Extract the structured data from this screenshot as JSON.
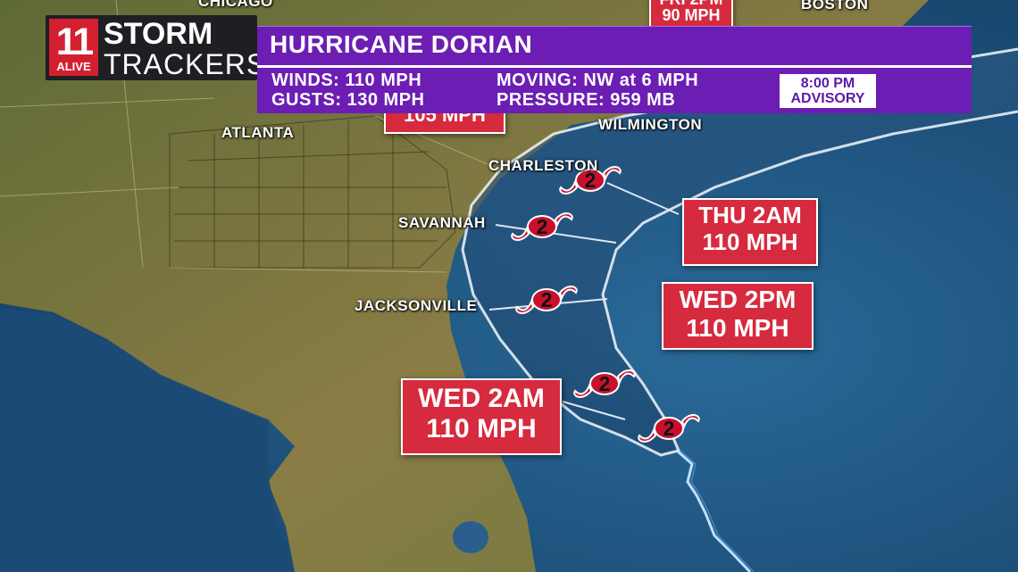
{
  "logo": {
    "number": "11",
    "station": "ALIVE",
    "line1": "STORM",
    "line2": "TRACKERS"
  },
  "banner": {
    "title": "HURRICANE DORIAN",
    "winds": "WINDS: 110 MPH",
    "gusts": "GUSTS: 130 MPH",
    "moving": "MOVING: NW at 6 MPH",
    "pressure": "PRESSURE: 959 MB",
    "advisory_time": "8:00 PM",
    "advisory_label": "ADVISORY"
  },
  "cities": {
    "chicago": "CHICAGO",
    "boston": "BOSTON",
    "atlanta": "ATLANTA",
    "wilmington": "WILMINGTON",
    "charleston": "CHARLESTON",
    "savannah": "SAVANNAH",
    "jacksonville": "JACKSONVILLE"
  },
  "forecasts": [
    {
      "time": "FRI 2PM",
      "wind": "90 MPH"
    },
    {
      "time": "",
      "wind": "105 MPH"
    },
    {
      "time": "THU 2AM",
      "wind": "110 MPH"
    },
    {
      "time": "WED 2PM",
      "wind": "110 MPH"
    },
    {
      "time": "WED 2AM",
      "wind": "110 MPH"
    }
  ],
  "storm_category": "2",
  "colors": {
    "forecast_box": "#d62a3e",
    "banner": "#6c1eb4",
    "land": "#7a7a3e",
    "ocean": "#1d4f7a",
    "storm_icon": "#c8102e"
  }
}
